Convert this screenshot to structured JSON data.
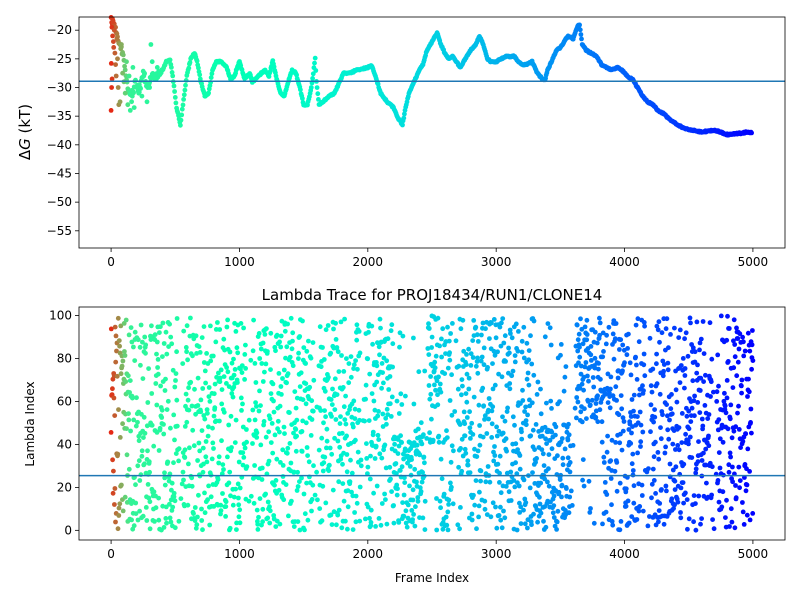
{
  "chart_data": [
    {
      "type": "scatter",
      "title": "",
      "xlabel": "",
      "ylabel": "ΔG (kT)",
      "ylabel_parts": {
        "delta": "Δ",
        "var": "G",
        "unit": " (kT)"
      },
      "xlim": [
        -250,
        5250
      ],
      "ylim": [
        -58,
        -17.7
      ],
      "xticks": [
        0,
        1000,
        2000,
        3000,
        4000,
        5000
      ],
      "yticks": [
        -55,
        -50,
        -45,
        -40,
        -35,
        -30,
        -25,
        -20
      ],
      "grid": false,
      "colormap": "rainbow",
      "hline": {
        "y": -28.9,
        "color": "#1f77b4"
      },
      "trace_knots": [
        [
          0,
          -18
        ],
        [
          30,
          -19.5
        ],
        [
          60,
          -22
        ],
        [
          90,
          -24
        ],
        [
          110,
          -27
        ],
        [
          130,
          -30
        ],
        [
          160,
          -32
        ],
        [
          190,
          -29
        ],
        [
          220,
          -31
        ],
        [
          250,
          -27
        ],
        [
          280,
          -30
        ],
        [
          320,
          -28
        ],
        [
          360,
          -28
        ],
        [
          400,
          -27
        ],
        [
          430,
          -25.5
        ],
        [
          460,
          -25.2
        ],
        [
          480,
          -28
        ],
        [
          510,
          -33.5
        ],
        [
          540,
          -36.5
        ],
        [
          560,
          -33
        ],
        [
          590,
          -28
        ],
        [
          620,
          -25
        ],
        [
          650,
          -24
        ],
        [
          670,
          -25.5
        ],
        [
          700,
          -29
        ],
        [
          730,
          -31.5
        ],
        [
          760,
          -31
        ],
        [
          790,
          -27
        ],
        [
          820,
          -25.5
        ],
        [
          860,
          -25.5
        ],
        [
          900,
          -26.5
        ],
        [
          930,
          -28.5
        ],
        [
          960,
          -28
        ],
        [
          1000,
          -25.5
        ],
        [
          1040,
          -28.5
        ],
        [
          1080,
          -27.5
        ],
        [
          1100,
          -29
        ],
        [
          1130,
          -28.5
        ],
        [
          1170,
          -27.5
        ],
        [
          1200,
          -27
        ],
        [
          1230,
          -28
        ],
        [
          1260,
          -25.3
        ],
        [
          1290,
          -28.5
        ],
        [
          1320,
          -31
        ],
        [
          1350,
          -31.5
        ],
        [
          1380,
          -29
        ],
        [
          1410,
          -27
        ],
        [
          1440,
          -27.5
        ],
        [
          1470,
          -30
        ],
        [
          1500,
          -33
        ],
        [
          1530,
          -33
        ],
        [
          1560,
          -30
        ],
        [
          1590,
          -25
        ],
        [
          1600,
          -29
        ],
        [
          1620,
          -33
        ],
        [
          1650,
          -32.5
        ],
        [
          1700,
          -31.5
        ],
        [
          1740,
          -31
        ],
        [
          1780,
          -29
        ],
        [
          1810,
          -27.5
        ],
        [
          1840,
          -27.5
        ],
        [
          1870,
          -27.5
        ],
        [
          1900,
          -27
        ],
        [
          1950,
          -26.8
        ],
        [
          2000,
          -26.5
        ],
        [
          2030,
          -26.2
        ],
        [
          2060,
          -28
        ],
        [
          2100,
          -31
        ],
        [
          2150,
          -32.5
        ],
        [
          2200,
          -33.5
        ],
        [
          2240,
          -35.5
        ],
        [
          2270,
          -36.5
        ],
        [
          2290,
          -34
        ],
        [
          2320,
          -31
        ],
        [
          2360,
          -29
        ],
        [
          2400,
          -27
        ],
        [
          2430,
          -26
        ],
        [
          2460,
          -23.5
        ],
        [
          2500,
          -22
        ],
        [
          2540,
          -20.5
        ],
        [
          2570,
          -22.5
        ],
        [
          2600,
          -24
        ],
        [
          2630,
          -25
        ],
        [
          2660,
          -24.5
        ],
        [
          2690,
          -25.5
        ],
        [
          2720,
          -26.5
        ],
        [
          2760,
          -25
        ],
        [
          2800,
          -23.5
        ],
        [
          2840,
          -22.5
        ],
        [
          2870,
          -21
        ],
        [
          2900,
          -22.5
        ],
        [
          2930,
          -25
        ],
        [
          2960,
          -25.5
        ],
        [
          3000,
          -25.5
        ],
        [
          3040,
          -25
        ],
        [
          3080,
          -24.5
        ],
        [
          3110,
          -24.6
        ],
        [
          3140,
          -24.5
        ],
        [
          3170,
          -25.5
        ],
        [
          3200,
          -26
        ],
        [
          3240,
          -26
        ],
        [
          3280,
          -25.5
        ],
        [
          3320,
          -27.5
        ],
        [
          3360,
          -28.5
        ],
        [
          3380,
          -28.7
        ],
        [
          3400,
          -27
        ],
        [
          3440,
          -25
        ],
        [
          3470,
          -23.5
        ],
        [
          3500,
          -23
        ],
        [
          3530,
          -22
        ],
        [
          3560,
          -21
        ],
        [
          3600,
          -21.5
        ],
        [
          3630,
          -19.5
        ],
        [
          3650,
          -19
        ],
        [
          3670,
          -22.5
        ],
        [
          3700,
          -23.5
        ],
        [
          3740,
          -24
        ],
        [
          3780,
          -24.5
        ],
        [
          3820,
          -26
        ],
        [
          3860,
          -26.5
        ],
        [
          3900,
          -27
        ],
        [
          3940,
          -26.5
        ],
        [
          3980,
          -27
        ],
        [
          4020,
          -28
        ],
        [
          4060,
          -28.5
        ],
        [
          4100,
          -30
        ],
        [
          4140,
          -31.5
        ],
        [
          4180,
          -32.5
        ],
        [
          4220,
          -33
        ],
        [
          4260,
          -34
        ],
        [
          4300,
          -34.5
        ],
        [
          4350,
          -35.5
        ],
        [
          4400,
          -36.3
        ],
        [
          4450,
          -37
        ],
        [
          4500,
          -37.3
        ],
        [
          4550,
          -37.5
        ],
        [
          4600,
          -37.8
        ],
        [
          4650,
          -37.6
        ],
        [
          4700,
          -37.5
        ],
        [
          4750,
          -37.8
        ],
        [
          4800,
          -38.2
        ],
        [
          4850,
          -38.1
        ],
        [
          4900,
          -38
        ],
        [
          4950,
          -37.8
        ],
        [
          4990,
          -37.8
        ]
      ],
      "early_scatter_points": [
        [
          0,
          -34
        ],
        [
          2,
          -25.8
        ],
        [
          4,
          -30
        ],
        [
          6,
          -19.5
        ],
        [
          8,
          -28.5
        ],
        [
          10,
          -18
        ],
        [
          12,
          -21
        ],
        [
          15,
          -18.5
        ],
        [
          18,
          -22
        ],
        [
          20,
          -23
        ],
        [
          25,
          -20
        ],
        [
          30,
          -24
        ],
        [
          35,
          -26
        ],
        [
          40,
          -28
        ],
        [
          45,
          -21.5
        ],
        [
          50,
          -25
        ],
        [
          55,
          -30
        ],
        [
          60,
          -33
        ],
        [
          70,
          -32.5
        ],
        [
          80,
          -22.5
        ],
        [
          90,
          -27.5
        ],
        [
          100,
          -29
        ],
        [
          110,
          -31
        ],
        [
          120,
          -25.5
        ],
        [
          130,
          -33
        ],
        [
          140,
          -28
        ],
        [
          150,
          -34
        ],
        [
          160,
          -30.5
        ],
        [
          170,
          -26.5
        ],
        [
          180,
          -33.5
        ],
        [
          200,
          -30
        ],
        [
          220,
          -29.5
        ],
        [
          240,
          -31.5
        ],
        [
          260,
          -27.5
        ],
        [
          280,
          -32.5
        ],
        [
          300,
          -30
        ],
        [
          310,
          -22.5
        ],
        [
          320,
          -25.5
        ],
        [
          340,
          -28.5
        ],
        [
          360,
          -26.5
        ]
      ]
    },
    {
      "type": "scatter",
      "title": "Lambda Trace for PROJ18434/RUN1/CLONE14",
      "xlabel": "Frame Index",
      "ylabel": "Lambda Index",
      "xlim": [
        -250,
        5250
      ],
      "ylim": [
        -4.5,
        104
      ],
      "xticks": [
        0,
        1000,
        2000,
        3000,
        4000,
        5000
      ],
      "yticks": [
        0,
        20,
        40,
        60,
        80,
        100
      ],
      "grid": false,
      "colormap": "rainbow",
      "hline": {
        "y": 25.5,
        "color": "#1f77b4"
      },
      "frame_range": [
        0,
        5000
      ],
      "lambda_range": [
        0,
        99
      ],
      "point_count": 2500,
      "sparse_bands": [
        [
          520,
          560
        ],
        [
          1060,
          1100
        ],
        [
          1580,
          1620
        ],
        [
          1940,
          1980
        ],
        [
          2440,
          2470
        ],
        [
          2660,
          2700
        ],
        [
          3580,
          3620
        ],
        [
          4160,
          4200
        ],
        [
          4680,
          4720
        ]
      ],
      "clusters": [
        {
          "x": [
            2200,
            2450
          ],
          "y": [
            0,
            45
          ]
        },
        {
          "x": [
            2450,
            2560
          ],
          "y": [
            40,
            100
          ]
        },
        {
          "x": [
            3300,
            3600
          ],
          "y": [
            0,
            50
          ]
        },
        {
          "x": [
            3600,
            3820
          ],
          "y": [
            50,
            100
          ]
        },
        {
          "x": [
            4750,
            5000
          ],
          "y": [
            0,
            100
          ]
        }
      ]
    }
  ]
}
